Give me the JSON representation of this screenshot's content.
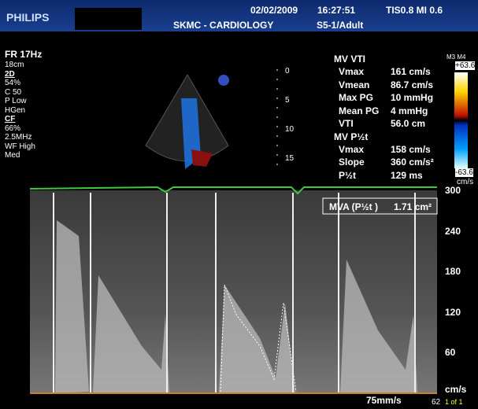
{
  "header": {
    "brand": "PHILIPS",
    "date": "02/02/2009",
    "time": "16:27:51",
    "index": "TIS0.8  MI 0.6",
    "department": "SKMC - CARDIOLOGY",
    "probe": "S5-1/Adult"
  },
  "settings": [
    "FR 17Hz",
    "18cm",
    "2D",
    "54%",
    "C 50",
    "P Low",
    "HGen",
    "CF",
    "66%",
    "2.5MHz",
    "WF High",
    "Med"
  ],
  "measurements": {
    "mv_vti": {
      "title": "MV VTI",
      "rows": [
        [
          "Vmax",
          "161 cm/s"
        ],
        [
          "Vmean",
          "86.7 cm/s"
        ],
        [
          "Max PG",
          "10 mmHg"
        ],
        [
          "Mean PG",
          "4 mmHg"
        ],
        [
          "VTI",
          "56.0 cm"
        ]
      ]
    },
    "mv_pht": {
      "title": "MV P½t",
      "rows": [
        [
          "Vmax",
          "158 cm/s"
        ],
        [
          "Slope",
          "360 cm/s²"
        ],
        [
          "P½t",
          "129 ms"
        ]
      ]
    },
    "mva": {
      "label": "MVA (P½t )",
      "value": "1.71 cm²"
    }
  },
  "depth_scale": [
    "0",
    "5",
    "10",
    "15"
  ],
  "color_bar": {
    "label": "M3 M4",
    "max": "+63.6",
    "min": "-63.6",
    "unit": "cm/s"
  },
  "velocity_scale": {
    "ticks": [
      "300",
      "240",
      "180",
      "120",
      "60"
    ],
    "unit": "cm/s"
  },
  "sweep_speed": "75mm/s",
  "frame": "1 of 1",
  "corner": "62"
}
